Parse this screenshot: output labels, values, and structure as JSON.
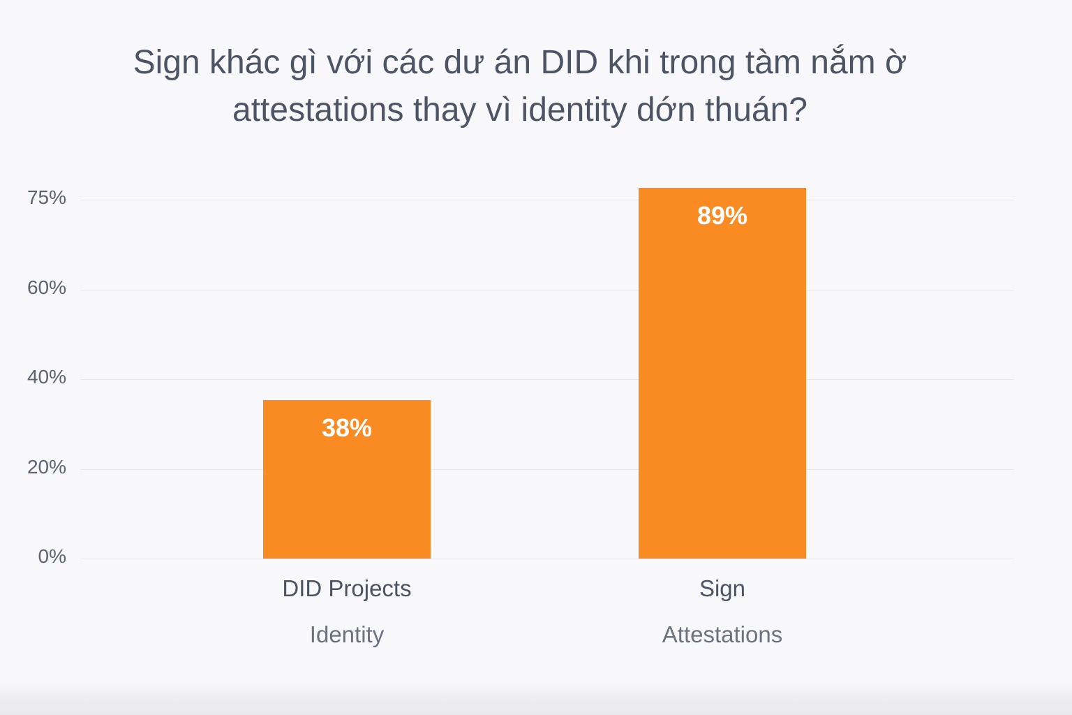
{
  "chart_data": {
    "type": "bar",
    "title": "Sign khác gì với các dư án DID khi trong tàm nắm ờ attestations thay vì identity dớn thuán?",
    "categories": [
      "DID Projects",
      "Sign"
    ],
    "category_sublabels": [
      "Identity",
      "Attestations"
    ],
    "values": [
      38,
      89
    ],
    "data_labels": [
      "38%",
      "89%"
    ],
    "ytick_labels": [
      "0%",
      "20%",
      "40%",
      "60%",
      "75%"
    ],
    "ylim": [
      0,
      75
    ],
    "grid": true,
    "colors": {
      "background": "#f8f8fb",
      "bar": "#f98b22",
      "data_label": "#ffffff",
      "title": "#4d5565",
      "category_label": "#4b5363",
      "sublabel": "#6b7280",
      "tick_label": "#5c6370",
      "gridline": "#e7e8ed"
    }
  }
}
